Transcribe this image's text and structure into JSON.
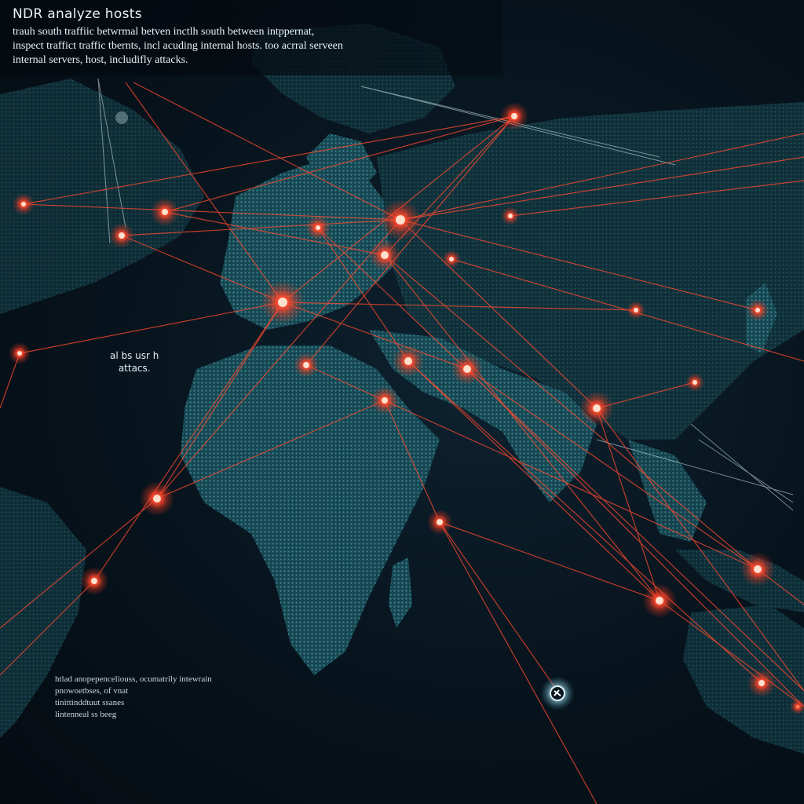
{
  "header": {
    "title": "NDR analyze hosts",
    "lines": [
      "trauh south  traffiic  betwrmal  betven inctlh south between intppernat,",
      "inspect traffict traffic tbernts,  incl acuding internal hosts. too acrral serveen",
      "internal servers,  host, includifly attacks."
    ]
  },
  "callout": {
    "line1": "al bs usr h",
    "line2": "attacs."
  },
  "legend_note": {
    "lines": [
      "htlad  anopepenceliouss, ocumatrily intewrain",
      "pnowoetbses,  of vnat",
      "tinittinddtuut  ssanes",
      "lintenneal  ss  beeg"
    ]
  },
  "colors": {
    "ocean": "#07111a",
    "land": "#1f5a66",
    "land_edge": "#3e9aa6",
    "attack_line": "#ff4a2e",
    "node_glow": "#ff3b20",
    "north_south_line": "#cfe6ef"
  },
  "map": {
    "nodes": [
      {
        "id": "n-scandinavia",
        "type": "attack"
      },
      {
        "id": "n-greenland",
        "type": "attack"
      },
      {
        "id": "n-uk",
        "type": "attack"
      },
      {
        "id": "n-canada-e",
        "type": "attack"
      },
      {
        "id": "n-canada-w",
        "type": "attack"
      },
      {
        "id": "n-germany",
        "type": "attack"
      },
      {
        "id": "n-poland",
        "type": "attack"
      },
      {
        "id": "n-russia-w",
        "type": "attack"
      },
      {
        "id": "n-russia-n",
        "type": "attack"
      },
      {
        "id": "n-russia-c",
        "type": "attack"
      },
      {
        "id": "n-russia-e",
        "type": "attack"
      },
      {
        "id": "n-france",
        "type": "attack"
      },
      {
        "id": "n-italy",
        "type": "attack"
      },
      {
        "id": "n-turkey",
        "type": "attack"
      },
      {
        "id": "n-iran",
        "type": "attack"
      },
      {
        "id": "n-saudi",
        "type": "attack"
      },
      {
        "id": "n-pakistan",
        "type": "attack"
      },
      {
        "id": "n-india",
        "type": "attack"
      },
      {
        "id": "n-china",
        "type": "attack"
      },
      {
        "id": "n-japan",
        "type": "attack"
      },
      {
        "id": "n-westafrica",
        "type": "attack"
      },
      {
        "id": "n-brazil",
        "type": "attack"
      },
      {
        "id": "n-atlantic",
        "type": "attack"
      },
      {
        "id": "n-eastafrica",
        "type": "attack"
      },
      {
        "id": "n-indianocean",
        "type": "attack"
      },
      {
        "id": "n-indonesia",
        "type": "attack"
      },
      {
        "id": "n-australia",
        "type": "attack"
      },
      {
        "id": "n-southatlantic",
        "type": "internal-host"
      }
    ]
  }
}
